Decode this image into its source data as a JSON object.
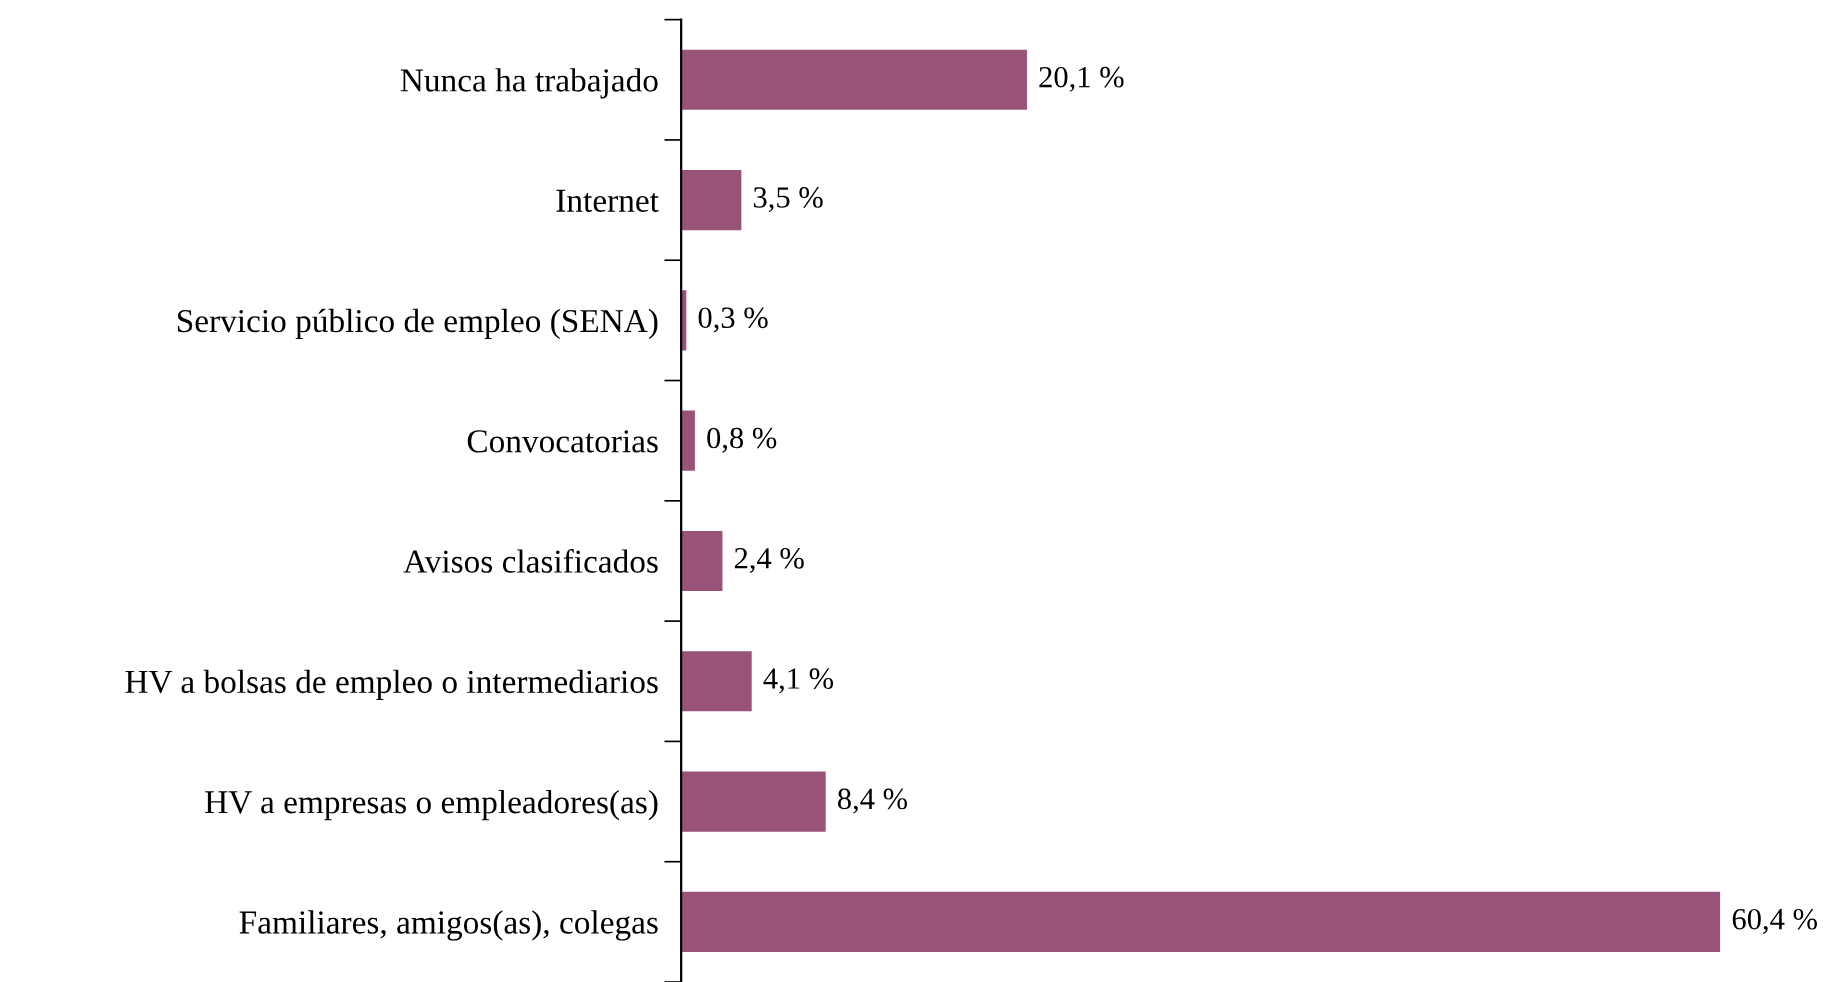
{
  "chart_data": {
    "type": "bar",
    "orientation": "horizontal",
    "categories": [
      "Nunca ha trabajado",
      "Internet",
      "Servicio público de empleo (SENA)",
      "Convocatorias",
      "Avisos clasificados",
      "HV a bolsas de empleo o intermediarios",
      "HV a empresas o empleadores(as)",
      "Familiares, amigos(as), colegas"
    ],
    "values": [
      20.1,
      3.5,
      0.3,
      0.8,
      2.4,
      4.1,
      8.4,
      60.4
    ],
    "value_labels": [
      "20,1 %",
      "3,5 %",
      "0,3 %",
      "0,8 %",
      "2,4 %",
      "4,1 %",
      "8,4 %",
      "60,4 %"
    ],
    "color": "#9a5378",
    "grid": false,
    "legend": false
  }
}
